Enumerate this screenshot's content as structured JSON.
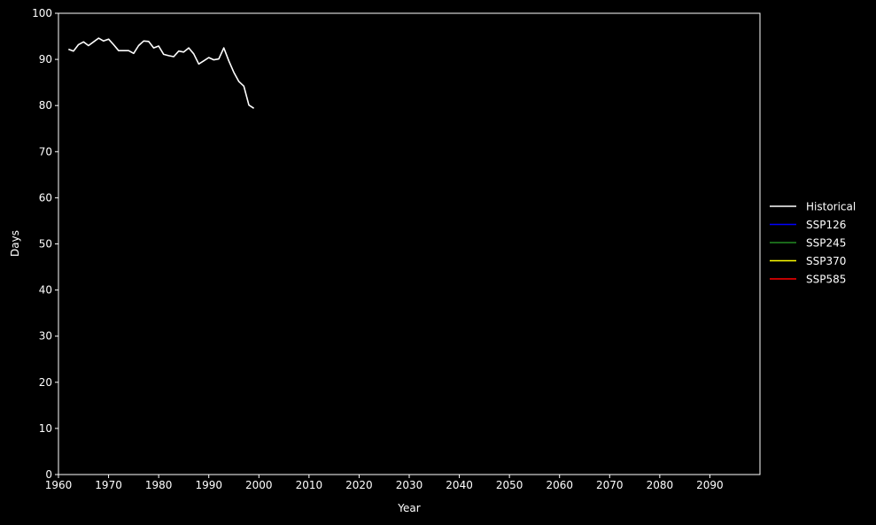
{
  "chart_data": {
    "type": "line",
    "title": "",
    "xlabel": "Year",
    "ylabel": "Days",
    "xlim": [
      1960,
      2100
    ],
    "ylim": [
      0,
      100
    ],
    "xticks": [
      1960,
      1970,
      1980,
      1990,
      2000,
      2010,
      2020,
      2030,
      2040,
      2050,
      2060,
      2070,
      2080,
      2090
    ],
    "yticks": [
      0,
      10,
      20,
      30,
      40,
      50,
      60,
      70,
      80,
      90,
      100
    ],
    "grid": false,
    "background": "#000000",
    "legend_position": "center-right, outside plot",
    "series": [
      {
        "name": "Historical",
        "color": "#ffffff",
        "x": [
          1962,
          1963,
          1964,
          1965,
          1966,
          1967,
          1968,
          1969,
          1970,
          1971,
          1972,
          1973,
          1974,
          1975,
          1976,
          1977,
          1978,
          1979,
          1980,
          1981,
          1982,
          1983,
          1984,
          1985,
          1986,
          1987,
          1988,
          1989,
          1990,
          1991,
          1992,
          1993,
          1994,
          1995,
          1996,
          1997,
          1998,
          1999
        ],
        "values": [
          92.2,
          91.8,
          93.2,
          93.8,
          93.0,
          93.8,
          94.6,
          94.0,
          94.4,
          93.2,
          91.9,
          91.9,
          91.9,
          91.3,
          93.0,
          94.0,
          93.9,
          92.5,
          92.9,
          91.1,
          90.8,
          90.6,
          91.8,
          91.6,
          92.5,
          91.2,
          89.0,
          89.7,
          90.4,
          89.9,
          90.1,
          92.5,
          89.7,
          87.2,
          85.2,
          84.2,
          80.1,
          79.4
        ]
      },
      {
        "name": "SSP126",
        "color": "#0000ff",
        "x": [],
        "values": []
      },
      {
        "name": "SSP245",
        "color": "#228b22",
        "x": [],
        "values": []
      },
      {
        "name": "SSP370",
        "color": "#ffff00",
        "x": [],
        "values": []
      },
      {
        "name": "SSP585",
        "color": "#ff0000",
        "x": [],
        "values": []
      }
    ]
  }
}
